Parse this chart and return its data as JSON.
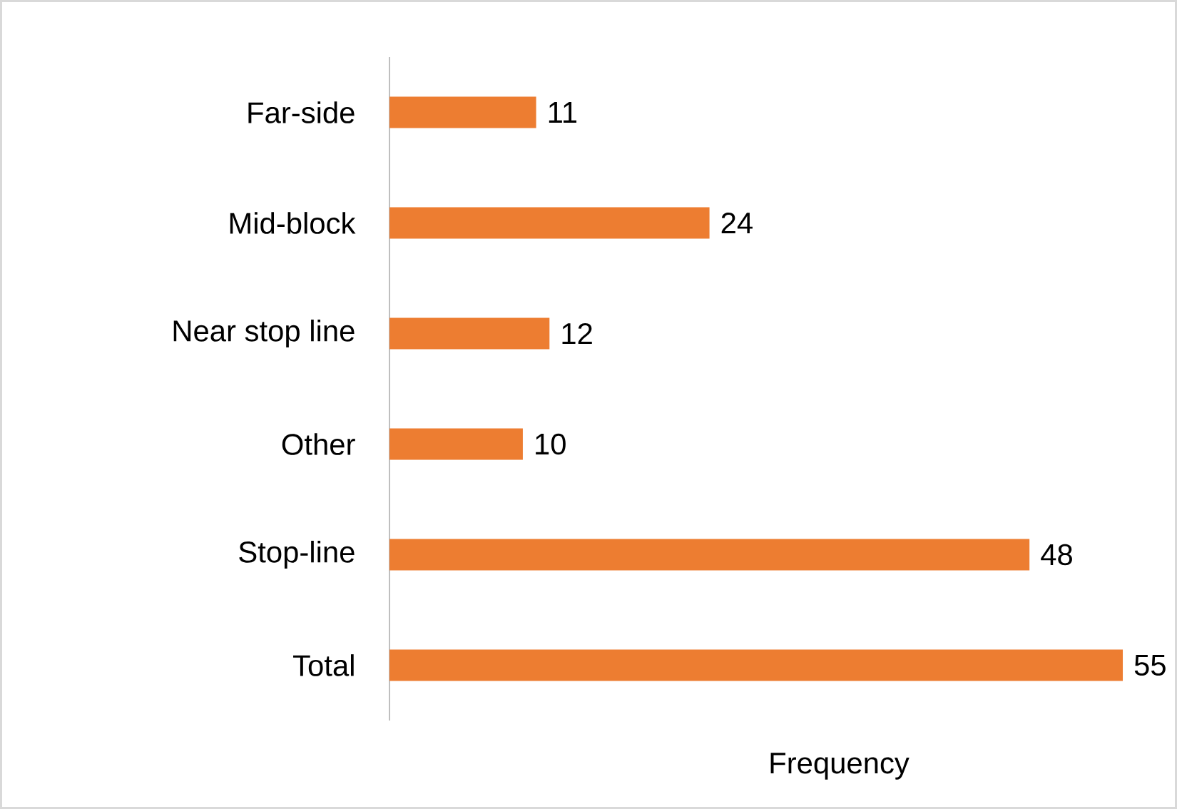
{
  "chart_data": {
    "type": "bar",
    "orientation": "horizontal",
    "xlabel": "Frequency",
    "categories": [
      "Far-side",
      "Mid-block",
      "Near stop line",
      "Other",
      "Stop-line",
      "Total"
    ],
    "values": [
      11,
      24,
      12,
      10,
      48,
      55
    ],
    "color": "#ed7d31",
    "data_labels": true
  }
}
